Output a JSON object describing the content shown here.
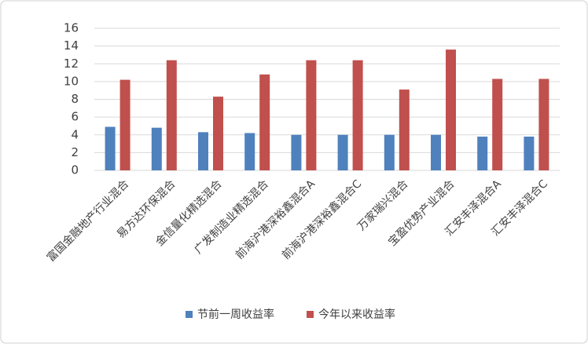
{
  "chart_data": {
    "type": "bar",
    "categories": [
      "富国金融地产行业混合",
      "易方达环保混合",
      "金信量化精选混合",
      "广发制造业精选混合",
      "前海沪港深裕鑫混合A",
      "前海沪港深裕鑫混合C",
      "万家瑞兴混合",
      "宝盈优势产业混合",
      "汇安丰泽混合A",
      "汇安丰泽混合C"
    ],
    "series": [
      {
        "name": "节前一周收益率",
        "color": "#4f81bd",
        "values": [
          4.9,
          4.8,
          4.3,
          4.2,
          4.0,
          4.0,
          4.0,
          4.0,
          3.8,
          3.8
        ]
      },
      {
        "name": "今年以来收益率",
        "color": "#c0504d",
        "values": [
          10.2,
          12.4,
          8.3,
          10.8,
          12.4,
          12.4,
          9.1,
          13.6,
          10.3,
          10.3
        ]
      }
    ],
    "ylim": [
      0,
      16
    ],
    "yticks": [
      0,
      2,
      4,
      6,
      8,
      10,
      12,
      14,
      16
    ],
    "grid": true,
    "legend": "bottom"
  }
}
